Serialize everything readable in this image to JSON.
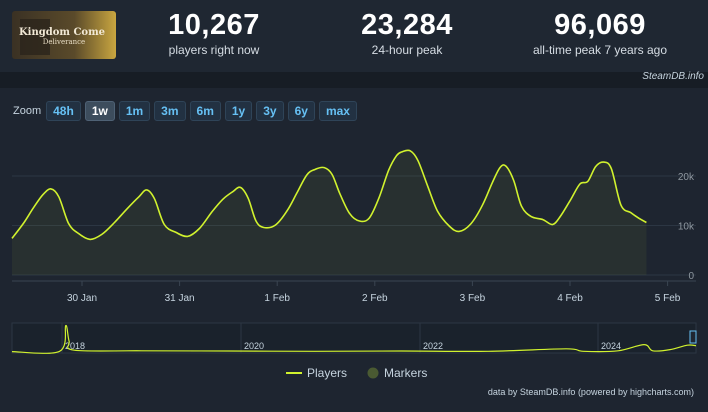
{
  "game": {
    "logo_line1": "Kingdom Come",
    "logo_line2": "Deliverance"
  },
  "stats": [
    {
      "value": "10,267",
      "label": "players right now"
    },
    {
      "value": "23,284",
      "label": "24-hour peak"
    },
    {
      "value": "96,069",
      "label": "all-time peak 7 years ago"
    }
  ],
  "credit_top": "SteamDB.info",
  "zoom": {
    "label": "Zoom",
    "buttons": [
      "48h",
      "1w",
      "1m",
      "3m",
      "6m",
      "1y",
      "3y",
      "6y",
      "max"
    ],
    "active": "1w"
  },
  "chart_data": {
    "type": "line",
    "series": [
      {
        "name": "Players",
        "color": "#d1f22e"
      }
    ],
    "markers_label": "Markers",
    "yticks": [
      "0",
      "10k",
      "20k"
    ],
    "xticks": [
      "30 Jan",
      "31 Jan",
      "1 Feb",
      "2 Feb",
      "3 Feb",
      "4 Feb",
      "5 Feb"
    ],
    "ylim": [
      0,
      27000
    ],
    "points": [
      [
        0,
        7400
      ],
      [
        0.12,
        10500
      ],
      [
        0.22,
        13600
      ],
      [
        0.32,
        16300
      ],
      [
        0.4,
        17400
      ],
      [
        0.48,
        15800
      ],
      [
        0.58,
        10400
      ],
      [
        0.68,
        8400
      ],
      [
        0.8,
        7200
      ],
      [
        0.92,
        8200
      ],
      [
        1.05,
        10600
      ],
      [
        1.18,
        13400
      ],
      [
        1.3,
        15800
      ],
      [
        1.38,
        17200
      ],
      [
        1.46,
        15400
      ],
      [
        1.56,
        10200
      ],
      [
        1.68,
        8600
      ],
      [
        1.8,
        7800
      ],
      [
        1.92,
        9400
      ],
      [
        2.05,
        12800
      ],
      [
        2.16,
        15300
      ],
      [
        2.26,
        16800
      ],
      [
        2.34,
        17700
      ],
      [
        2.42,
        15500
      ],
      [
        2.5,
        10900
      ],
      [
        2.58,
        9600
      ],
      [
        2.7,
        10100
      ],
      [
        2.82,
        13000
      ],
      [
        2.92,
        16600
      ],
      [
        3.02,
        20200
      ],
      [
        3.1,
        21300
      ],
      [
        3.2,
        21700
      ],
      [
        3.28,
        20300
      ],
      [
        3.36,
        16400
      ],
      [
        3.46,
        12400
      ],
      [
        3.56,
        10900
      ],
      [
        3.66,
        11500
      ],
      [
        3.76,
        15600
      ],
      [
        3.86,
        21200
      ],
      [
        3.94,
        24100
      ],
      [
        4.0,
        24900
      ],
      [
        4.08,
        25100
      ],
      [
        4.16,
        23100
      ],
      [
        4.26,
        17900
      ],
      [
        4.36,
        12900
      ],
      [
        4.48,
        9900
      ],
      [
        4.58,
        8800
      ],
      [
        4.7,
        10300
      ],
      [
        4.82,
        14100
      ],
      [
        4.92,
        18600
      ],
      [
        5.0,
        21700
      ],
      [
        5.06,
        22000
      ],
      [
        5.14,
        19100
      ],
      [
        5.22,
        13900
      ],
      [
        5.32,
        11800
      ],
      [
        5.44,
        11200
      ],
      [
        5.54,
        10200
      ],
      [
        5.62,
        11900
      ],
      [
        5.72,
        15100
      ],
      [
        5.82,
        18400
      ],
      [
        5.9,
        18900
      ],
      [
        5.98,
        21900
      ],
      [
        6.06,
        22800
      ],
      [
        6.14,
        21500
      ],
      [
        6.24,
        14100
      ],
      [
        6.34,
        12600
      ],
      [
        6.42,
        11500
      ],
      [
        6.5,
        10600
      ]
    ],
    "navigator": {
      "year_labels": [
        "2018",
        "2020",
        "2022",
        "2024"
      ],
      "points": [
        [
          0,
          0.05
        ],
        [
          0.55,
          0.06
        ],
        [
          0.62,
          0.98
        ],
        [
          0.66,
          0.42
        ],
        [
          0.72,
          0.1
        ],
        [
          1.5,
          0.08
        ],
        [
          2.5,
          0.07
        ],
        [
          3.5,
          0.06
        ],
        [
          4.5,
          0.07
        ],
        [
          5.5,
          0.06
        ],
        [
          6.4,
          0.15
        ],
        [
          6.6,
          0.06
        ],
        [
          7.0,
          0.08
        ],
        [
          7.3,
          0.3
        ],
        [
          7.4,
          0.08
        ],
        [
          7.6,
          0.12
        ],
        [
          7.8,
          0.28
        ],
        [
          7.9,
          0.26
        ]
      ]
    }
  },
  "credit_bottom": "data by SteamDB.info (powered by highcharts.com)"
}
